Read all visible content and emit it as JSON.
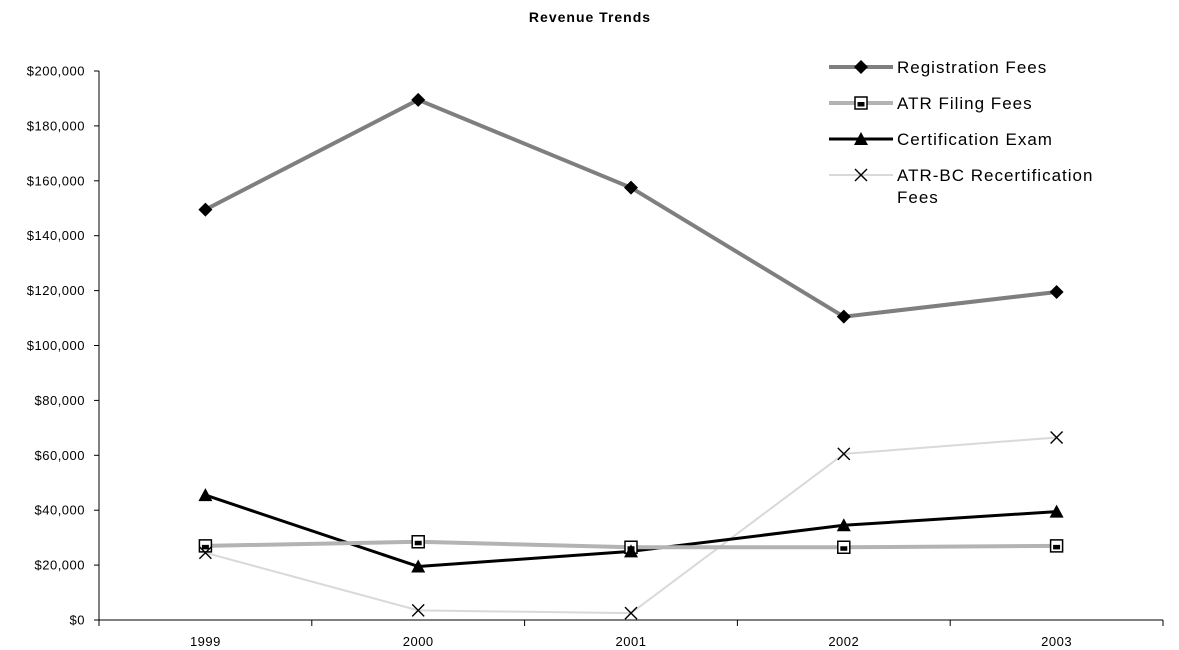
{
  "chart_data": {
    "type": "line",
    "title": "Revenue Trends",
    "xlabel": "",
    "ylabel": "",
    "categories": [
      "1999",
      "2000",
      "2001",
      "2002",
      "2003"
    ],
    "ylim": [
      0,
      200000
    ],
    "y_ticks": [
      0,
      20000,
      40000,
      60000,
      80000,
      100000,
      120000,
      140000,
      160000,
      180000,
      200000
    ],
    "y_tick_labels": [
      "$0",
      "$20,000",
      "$40,000",
      "$60,000",
      "$80,000",
      "$100,000",
      "$120,000",
      "$140,000",
      "$160,000",
      "$180,000",
      "$200,000"
    ],
    "grid": false,
    "legend_position": "top-right",
    "series": [
      {
        "name": "Registration Fees",
        "legend_lines": [
          "Registration Fees"
        ],
        "values": [
          149500,
          189500,
          157500,
          110500,
          119500
        ],
        "color": "#7f7f7f",
        "marker": "diamond",
        "marker_color": "#000000"
      },
      {
        "name": "ATR Filing Fees",
        "legend_lines": [
          "ATR Filing Fees"
        ],
        "values": [
          27000,
          28500,
          26500,
          26500,
          27000
        ],
        "color": "#b3b3b3",
        "marker": "square",
        "marker_color": "#000000"
      },
      {
        "name": "Certification Exam",
        "legend_lines": [
          "Certification Exam"
        ],
        "values": [
          45500,
          19500,
          25000,
          34500,
          39500
        ],
        "color": "#000000",
        "marker": "triangle",
        "marker_color": "#000000"
      },
      {
        "name": "ATR-BC Recertification Fees",
        "legend_lines": [
          "ATR-BC Recertification",
          "Fees"
        ],
        "values": [
          24500,
          3500,
          2500,
          60500,
          66500
        ],
        "color": "#d9d9d9",
        "marker": "x",
        "marker_color": "#000000"
      }
    ]
  }
}
